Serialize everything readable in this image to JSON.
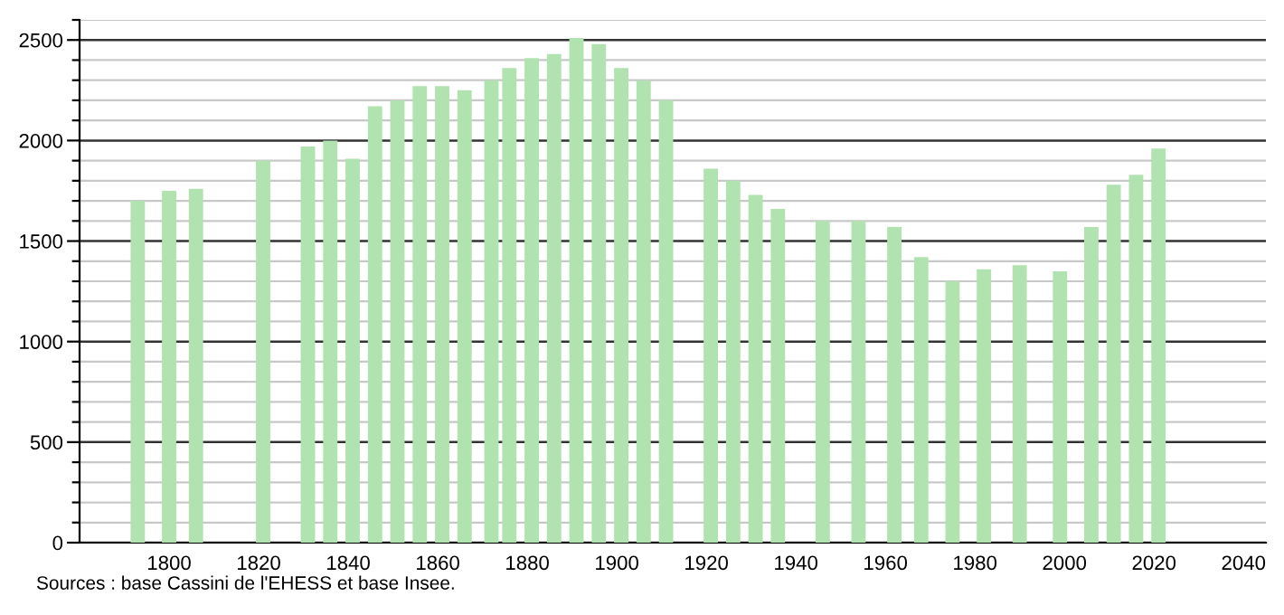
{
  "chart_data": {
    "type": "bar",
    "color": "#b0e3b0",
    "x": [
      1793,
      1800,
      1806,
      1821,
      1831,
      1836,
      1841,
      1846,
      1851,
      1856,
      1861,
      1866,
      1872,
      1876,
      1881,
      1886,
      1891,
      1896,
      1901,
      1906,
      1911,
      1921,
      1926,
      1931,
      1936,
      1946,
      1954,
      1962,
      1968,
      1975,
      1982,
      1990,
      1999,
      2006,
      2011,
      2016,
      2021
    ],
    "values": [
      1700,
      1750,
      1760,
      1900,
      1970,
      2000,
      1910,
      2170,
      2200,
      2270,
      2270,
      2250,
      2300,
      2360,
      2410,
      2430,
      2510,
      2480,
      2360,
      2300,
      2200,
      1860,
      1800,
      1730,
      1660,
      1600,
      1600,
      1570,
      1420,
      1300,
      1360,
      1380,
      1350,
      1570,
      1780,
      1830,
      1960
    ],
    "xlim": [
      1780,
      2045
    ],
    "xticks": [
      1800,
      1820,
      1840,
      1860,
      1880,
      1900,
      1920,
      1940,
      1960,
      1980,
      2000,
      2020,
      2040
    ],
    "ylim": [
      0,
      2600
    ],
    "yticks": [
      0,
      {
        "value": 100,
        "label": null
      },
      {
        "value": 200,
        "label": null
      },
      {
        "value": 300,
        "label": null
      },
      {
        "value": 400,
        "label": null
      },
      500,
      {
        "value": 600,
        "label": null
      },
      {
        "value": 700,
        "label": null
      },
      {
        "value": 800,
        "label": null
      },
      {
        "value": 900,
        "label": null
      },
      1000,
      {
        "value": 1100,
        "label": null
      },
      {
        "value": 1200,
        "label": null
      },
      {
        "value": 1300,
        "label": null
      },
      {
        "value": 1400,
        "label": null
      },
      1500,
      {
        "value": 1600,
        "label": null
      },
      {
        "value": 1700,
        "label": null
      },
      {
        "value": 1800,
        "label": null
      },
      {
        "value": 1900,
        "label": null
      },
      2000,
      {
        "value": 2100,
        "label": null
      },
      {
        "value": 2200,
        "label": null
      },
      {
        "value": 2300,
        "label": null
      },
      {
        "value": 2400,
        "label": null
      },
      2500,
      {
        "value": 2600,
        "label": null
      }
    ],
    "grid": "y",
    "annotations": [
      "Sources : base Cassini de l'EHESS et base Insee."
    ]
  }
}
